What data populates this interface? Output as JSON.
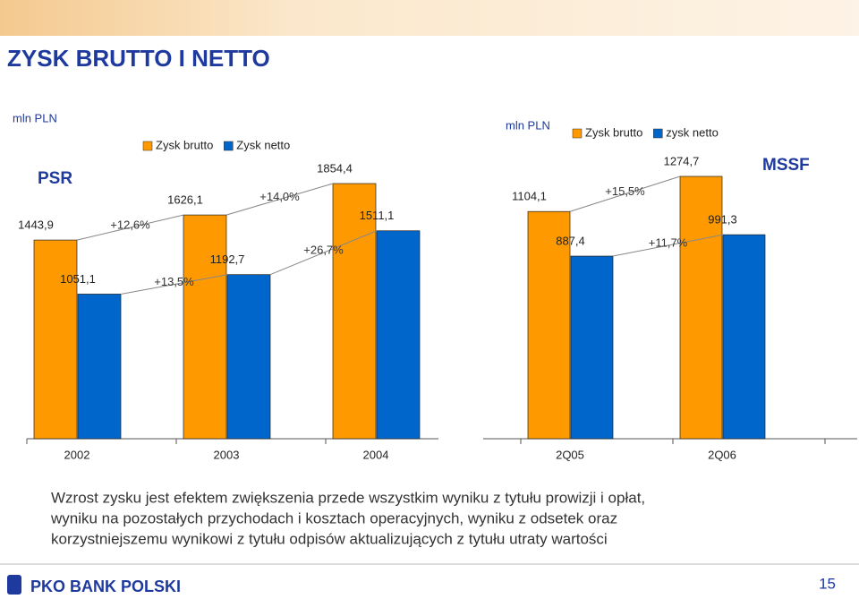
{
  "header": {
    "title": "ZYSK BRUTTO I NETTO"
  },
  "chart_data": [
    {
      "type": "bar",
      "unit": "mln PLN",
      "badge": "PSR",
      "categories": [
        "2002",
        "2003",
        "2004"
      ],
      "series": [
        {
          "name": "Zysk brutto",
          "color": "#ff9900",
          "values": [
            1443.9,
            1626.1,
            1854.4
          ],
          "value_labels": [
            "1443,9",
            "1626,1",
            "1854,4"
          ],
          "growth_labels": [
            "+12,6%",
            "+14,0%"
          ]
        },
        {
          "name": "Zysk netto",
          "color": "#0066cc",
          "values": [
            1051.1,
            1192.7,
            1511.1
          ],
          "value_labels": [
            "1051,1",
            "1192,7",
            "1511,1"
          ],
          "growth_labels": [
            "+13,5%",
            "+26,7%"
          ]
        }
      ]
    },
    {
      "type": "bar",
      "unit": "mln PLN",
      "badge": "MSSF",
      "categories": [
        "2Q05",
        "2Q06"
      ],
      "series": [
        {
          "name": "Zysk brutto",
          "color": "#ff9900",
          "values": [
            1104.1,
            1274.7
          ],
          "value_labels": [
            "1104,1",
            "1274,7"
          ],
          "growth_labels": [
            "+15,5%"
          ]
        },
        {
          "name": "zysk netto",
          "color": "#0066cc",
          "values": [
            887.4,
            991.3
          ],
          "value_labels": [
            "887,4",
            "991,3"
          ],
          "growth_labels": [
            "+11,7%"
          ]
        }
      ]
    }
  ],
  "body": {
    "lines": [
      "Wzrost zysku jest efektem zwiększenia przede wszystkim wyniku z tytułu prowizji i opłat,",
      "wyniku na pozostałych przychodach i kosztach operacyjnych, wyniku z odsetek oraz",
      "korzystniejszemu wynikowi z tytułu odpisów aktualizujących z tytułu utraty wartości"
    ]
  },
  "footer": {
    "brand": "PKO BANK POLSKI",
    "page": "15"
  }
}
